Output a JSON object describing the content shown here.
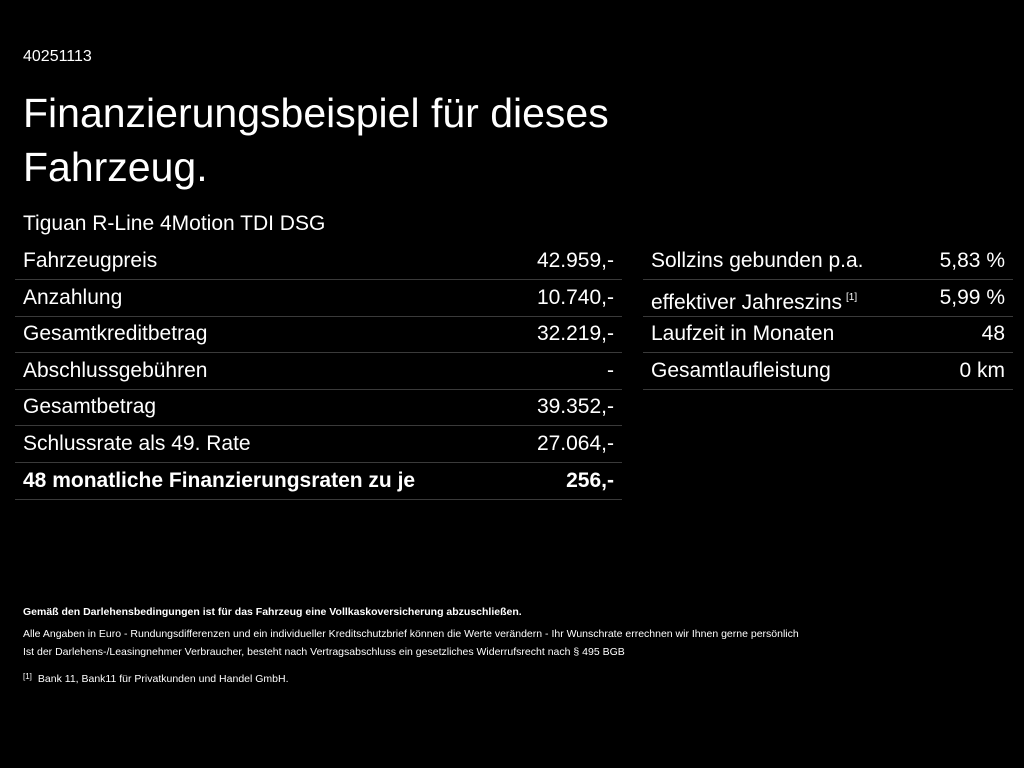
{
  "header": {
    "id": "40251113",
    "title_lines": [
      "Finanzierungsbeispiel für dieses",
      "Fahrzeug."
    ],
    "model": "Tiguan R-Line 4Motion TDI DSG"
  },
  "left_table": {
    "rows": [
      [
        "Fahrzeugpreis",
        "42.959,-"
      ],
      [
        "Anzahlung",
        "10.740,-"
      ],
      [
        "Gesamtkreditbetrag",
        "32.219,-"
      ],
      [
        "Abschlussgebühren",
        "-"
      ],
      [
        "Gesamtbetrag",
        "39.352,-"
      ],
      [
        "Schlussrate als 49. Rate",
        "27.064,-"
      ],
      [
        "48 monatliche Finanzierungsraten zu je",
        "256,-"
      ]
    ]
  },
  "right_table": {
    "rows": [
      [
        "Sollzins gebunden p.a.",
        "5,83 %"
      ],
      [
        "effektiver Jahreszins",
        "5,99 %"
      ],
      [
        "Laufzeit in Monaten",
        "48"
      ],
      [
        "Gesamtlaufleistung",
        "0 km"
      ]
    ],
    "note_marker": "[1]"
  },
  "footer": {
    "bold_line": "Gemäß den Darlehensbedingungen ist für das Fahrzeug eine Vollkaskoversicherung abzuschließen.",
    "lines": [
      "Alle Angaben in Euro - Rundungsdifferenzen und ein individueller Kreditschutzbrief können die Werte verändern - Ihr Wunschrate errechnen wir Ihnen gerne persönlich",
      "Ist der Darlehens-/Leasingnehmer Verbraucher, besteht nach Vertragsabschluss ein gesetzliches Widerrufsrecht nach § 495 BGB"
    ],
    "footnote_marker": "[1]",
    "footnote": "Bank 11, Bank11 für Privatkunden und Handel GmbH."
  }
}
